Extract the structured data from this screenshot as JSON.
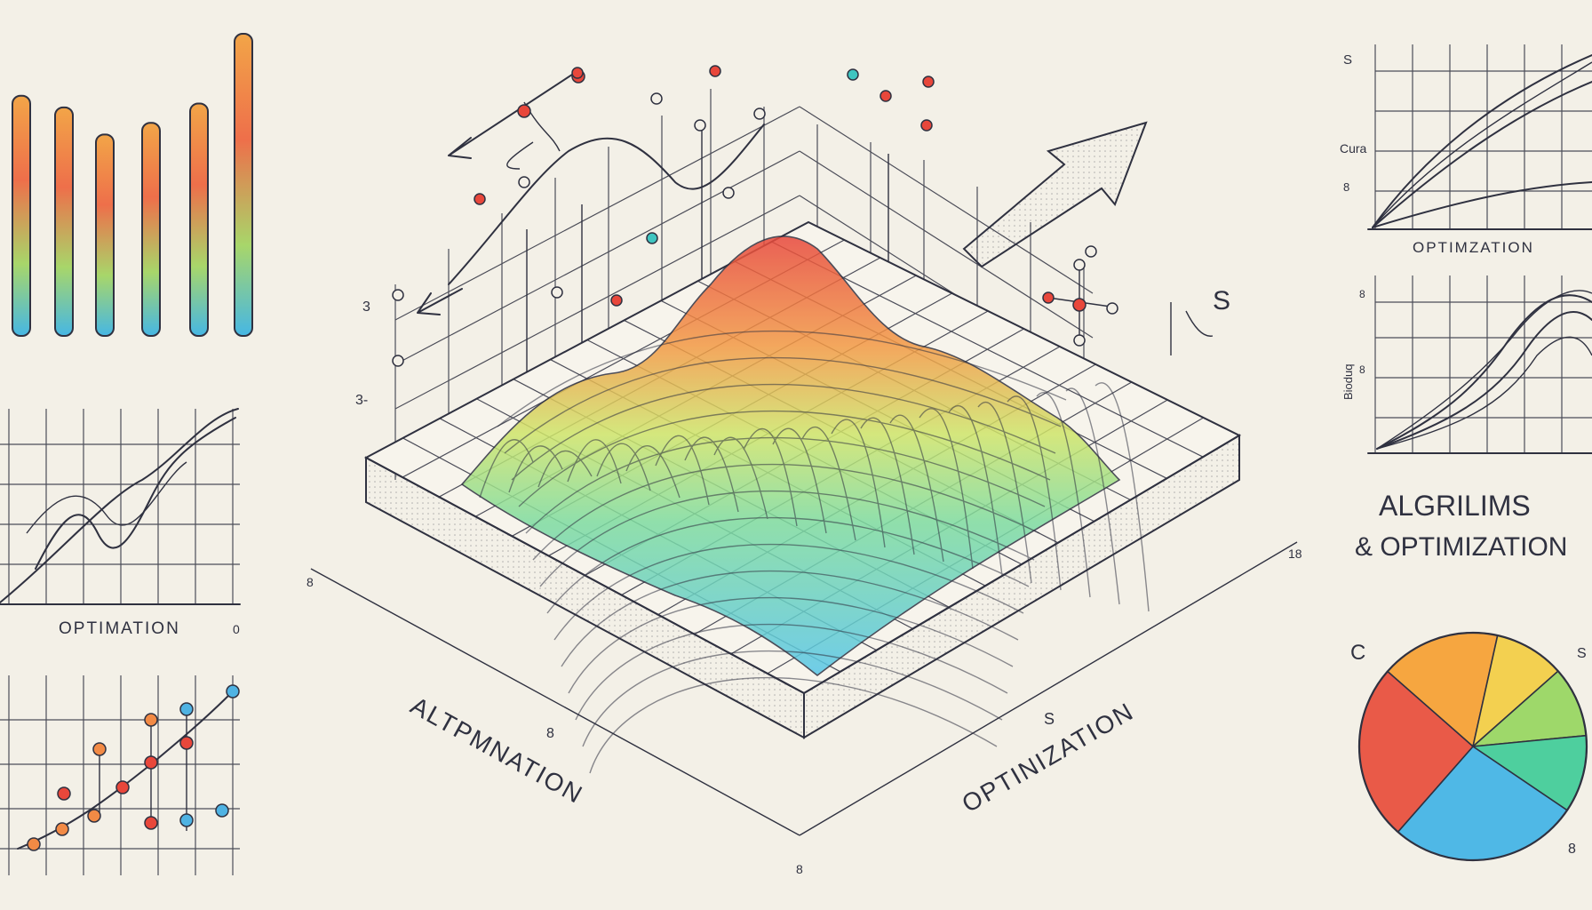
{
  "labels": {
    "left_line_chart": "OPTIMATION",
    "left_line_chart_end": "0",
    "diagram_left_label": "ALTPMNATION",
    "diagram_right_label": "OPTINIZATION",
    "diagram_left_mark": "8",
    "diagram_right_mark": "S",
    "diagram_bottom_mark": "8",
    "diagram_corner_left": "8",
    "diagram_corner_right": "18",
    "axis_mark_top": "3",
    "axis_mark_mid": "3-",
    "diagram_top_right_mark": "S",
    "right_top_chart_title": "OPTIMZATION",
    "right_top_chart_y_top": "S",
    "right_top_chart_y_mid": "Cura",
    "right_top_chart_y_low": "8",
    "right_mid_chart_y_label": "Bioduq",
    "right_mid_chart_y_top": "8",
    "right_mid_chart_y_low": "8",
    "right_heading_line1": "ALGRILIMS",
    "right_heading_line2": "& OPTIMIZATION",
    "pie_mark_left": "C",
    "pie_mark_right": "S",
    "pie_mark_bottom": "8"
  },
  "palette": {
    "ink": "#2f3140",
    "red": "#e8473b",
    "orange": "#f28a45",
    "yellow": "#f3c94a",
    "green": "#8fd46a",
    "teal": "#3fc5c0",
    "blue": "#4fb3e3"
  },
  "bar_chart": {
    "values": [
      0.62,
      0.59,
      0.52,
      0.55,
      0.6,
      0.78
    ]
  },
  "pie_chart": {
    "slices": [
      {
        "color": "#f6a640",
        "fraction": 0.17
      },
      {
        "color": "#f3d050",
        "fraction": 0.1
      },
      {
        "color": "#9ed86a",
        "fraction": 0.1
      },
      {
        "color": "#4ecf9e",
        "fraction": 0.11
      },
      {
        "color": "#4fb8e6",
        "fraction": 0.27
      },
      {
        "color": "#e95a48",
        "fraction": 0.25
      }
    ]
  }
}
